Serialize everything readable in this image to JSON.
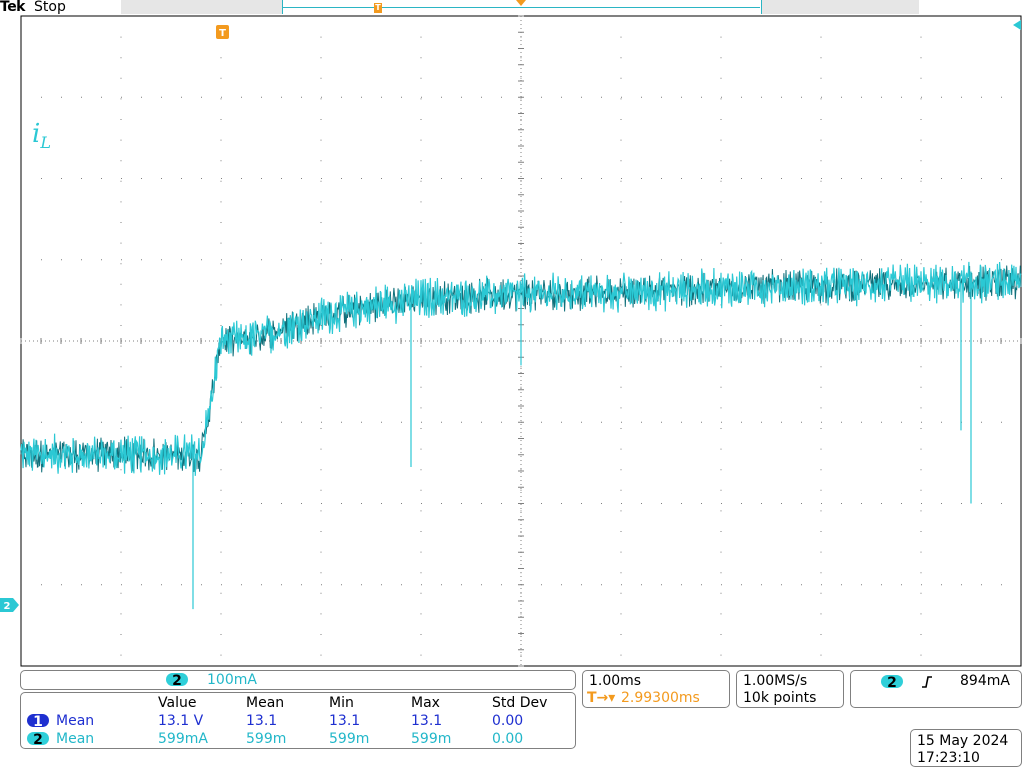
{
  "header": {
    "brand": "Tek",
    "state": "Stop"
  },
  "screen": {
    "trigger_marker": "T",
    "channel_marker": "2",
    "waveform_label": "i",
    "waveform_label_sub": "L",
    "colors": {
      "trace": "#2bc8d4",
      "trace_shadow": "#0f6f7a",
      "grid": "#7f7f7f",
      "trigger": "#f39a1e",
      "ch1": "#1e2fd0",
      "ch2": "#2fcfd9"
    }
  },
  "chart_data": {
    "type": "line",
    "title": "",
    "xlabel": "",
    "ylabel": "",
    "x_unit": "ms",
    "y_unit": "mA",
    "x": [
      -5.0,
      -3.5,
      -3.2,
      -3.1,
      -3.0,
      -2.8,
      -2.5,
      -2.0,
      -1.5,
      -1.0,
      0.0,
      1.0,
      2.0,
      3.0,
      4.0,
      5.0
    ],
    "series": [
      {
        "values": [
          520,
          520,
          520,
          650,
          805,
          800,
          820,
          860,
          885,
          905,
          915,
          920,
          930,
          935,
          940,
          945
        ]
      }
    ],
    "xlim": [
      -5.0,
      5.0
    ],
    "ylim": [
      0,
      1600
    ],
    "grid": true,
    "spikes": [
      {
        "x": -3.28,
        "y": 140
      },
      {
        "x": -1.1,
        "y": 490
      },
      {
        "x": 0.0,
        "y": 740
      },
      {
        "x": 4.4,
        "y": 580
      },
      {
        "x": 4.5,
        "y": 400
      }
    ]
  },
  "channel_scale": {
    "badge": "2",
    "value": "100mA"
  },
  "measurements": {
    "headers": [
      "Value",
      "Mean",
      "Min",
      "Max",
      "Std Dev"
    ],
    "rows": [
      {
        "badge": "1",
        "label": "Mean",
        "value": "13.1 V",
        "mean": "13.1",
        "min": "13.1",
        "max": "13.1",
        "std": "0.00"
      },
      {
        "badge": "2",
        "label": "Mean",
        "value": "599mA",
        "mean": "599m",
        "min": "599m",
        "max": "599m",
        "std": "0.00"
      }
    ]
  },
  "timebase": {
    "scale": "1.00ms",
    "position": "2.99300ms",
    "position_icon": "T→▾"
  },
  "acquisition": {
    "rate": "1.00MS/s",
    "points": "10k points"
  },
  "trigger": {
    "badge": "2",
    "slope_icon": "rising-edge-icon",
    "level": "894mA"
  },
  "datetime": {
    "date": "15 May 2024",
    "time": "17:23:10"
  }
}
